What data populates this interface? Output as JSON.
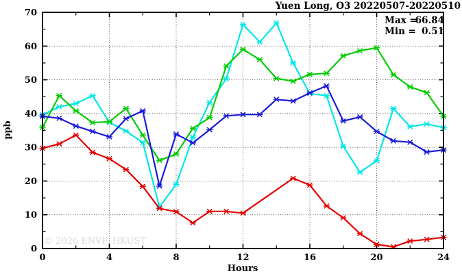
{
  "watermark": "© 2026 ENVF, HKUST",
  "chart_data": {
    "type": "line",
    "title": "Yuen Long, O3 20220507-20220510",
    "xlabel": "Hours",
    "ylabel": "ppb",
    "xlim": [
      0,
      24
    ],
    "ylim": [
      0,
      70
    ],
    "x_major_ticks": [
      0,
      4,
      8,
      12,
      16,
      20,
      24
    ],
    "x_minor_step": 2,
    "y_major_ticks": [
      0,
      10,
      20,
      30,
      40,
      50,
      60,
      70
    ],
    "y_minor_step": 5,
    "grid": "dotted at major ticks",
    "legend_position": "none",
    "annotations": {
      "max_label": "Max =",
      "max_value": "66.84",
      "min_label": "Min =",
      "min_value": "0.51"
    },
    "x": [
      0,
      1,
      2,
      3,
      4,
      5,
      6,
      7,
      8,
      9,
      10,
      11,
      12,
      13,
      14,
      15,
      16,
      17,
      18,
      19,
      20,
      21,
      22,
      23,
      24
    ],
    "series": [
      {
        "name": "cyan-series",
        "color": "#00e6e6",
        "values": [
          39.6,
          42.0,
          43.0,
          45.3,
          37.4,
          34.8,
          31.4,
          12.3,
          19.0,
          33.0,
          43.3,
          50.3,
          66.4,
          61.2,
          66.84,
          55.0,
          45.9,
          45.3,
          30.3,
          22.6,
          26.0,
          41.5,
          36.1,
          36.9,
          35.8
        ]
      },
      {
        "name": "red-series",
        "color": "#e60000",
        "values": [
          29.7,
          31.0,
          33.6,
          28.5,
          26.6,
          23.4,
          18.4,
          11.9,
          10.9,
          7.6,
          11.0,
          11.0,
          10.5,
          null,
          null,
          20.8,
          18.8,
          12.6,
          9.1,
          4.4,
          1.2,
          0.51,
          2.2,
          2.7,
          3.3
        ]
      },
      {
        "name": "green-series",
        "color": "#00cc00",
        "values": [
          35.9,
          45.3,
          40.8,
          37.3,
          37.6,
          41.5,
          33.6,
          26.1,
          28.0,
          35.6,
          38.8,
          54.1,
          59.0,
          56.0,
          50.4,
          49.6,
          51.6,
          51.9,
          57.1,
          58.6,
          59.5,
          51.5,
          47.9,
          46.2,
          39.2
        ]
      },
      {
        "name": "blue-series",
        "color": "#1a1ad9",
        "values": [
          39.2,
          38.6,
          36.3,
          34.7,
          33.1,
          38.5,
          40.8,
          18.5,
          33.9,
          31.3,
          35.2,
          39.3,
          39.7,
          39.7,
          44.2,
          43.7,
          46.1,
          48.2,
          37.8,
          39.0,
          34.7,
          31.9,
          31.5,
          28.6,
          29.2
        ]
      }
    ]
  }
}
